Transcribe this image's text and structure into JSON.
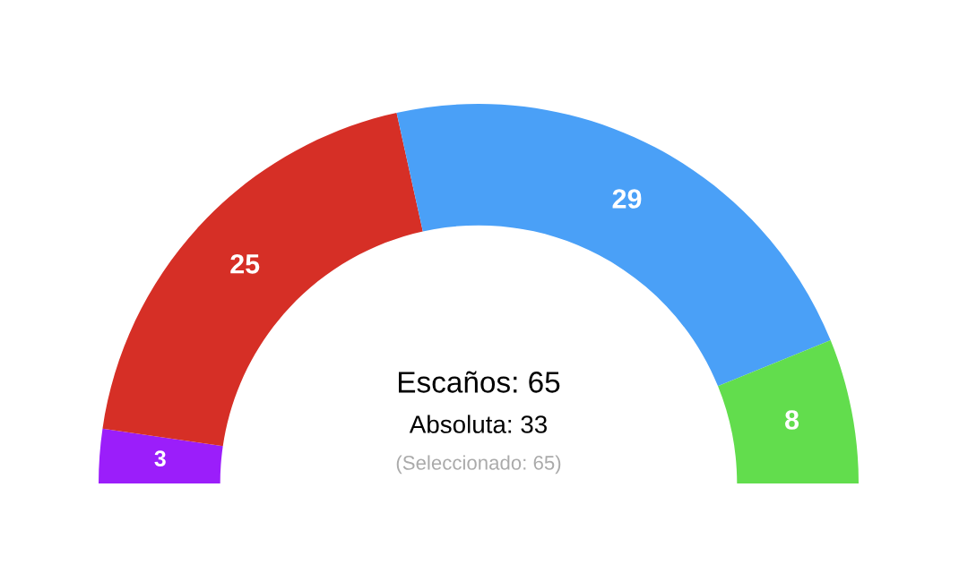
{
  "chart_data": {
    "type": "donut",
    "categories": [
      null,
      null,
      null,
      null
    ],
    "values": [
      3,
      25,
      29,
      8
    ],
    "colors": [
      "#9b1efa",
      "#d62f26",
      "#4aa0f7",
      "#62dd4d"
    ],
    "data_labels": true,
    "annotations": [
      "Escaños: 65",
      "Absoluta: 33",
      "(Seleccionado: 65)"
    ]
  }
}
